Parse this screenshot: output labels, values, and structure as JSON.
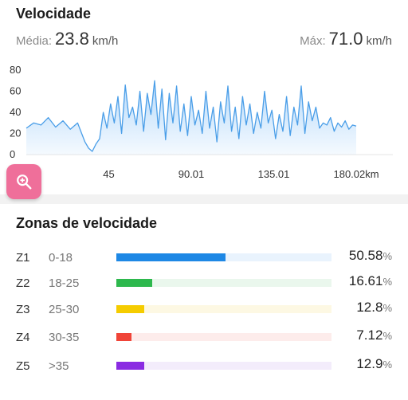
{
  "speed": {
    "title": "Velocidade",
    "avg_label": "Média:",
    "avg_value": "23.8",
    "avg_unit": "km/h",
    "max_label": "Máx:",
    "max_value": "71.0",
    "max_unit": "km/h"
  },
  "zones": {
    "title": "Zonas de velocidade",
    "items": [
      {
        "name": "Z1",
        "range": "0-18",
        "percent": "50.58",
        "fraction": 0.5058,
        "color": "#1e88e5",
        "track_color": "#e9f3fd"
      },
      {
        "name": "Z2",
        "range": "18-25",
        "percent": "16.61",
        "fraction": 0.1661,
        "color": "#2db84d",
        "track_color": "#eaf7ed"
      },
      {
        "name": "Z3",
        "range": "25-30",
        "percent": "12.8",
        "fraction": 0.128,
        "color": "#f5cc00",
        "track_color": "#fdf8e3"
      },
      {
        "name": "Z4",
        "range": "30-35",
        "percent": "7.12",
        "fraction": 0.0712,
        "color": "#f04438",
        "track_color": "#fdeceb"
      },
      {
        "name": "Z5",
        "range": ">35",
        "percent": "12.9",
        "fraction": 0.129,
        "color": "#8a2be2",
        "track_color": "#f3ecfb"
      }
    ],
    "percent_sign": "%"
  },
  "zoom_button": {
    "icon": "zoom-in-icon",
    "color": "#ef6f9a"
  },
  "chart_data": {
    "type": "area",
    "xlabel": "",
    "ylabel": "",
    "xlim": [
      0,
      200
    ],
    "ylim": [
      0,
      80
    ],
    "y_ticks": [
      "0",
      "20",
      "40",
      "60",
      "80"
    ],
    "x_ticks": [
      {
        "value": 0,
        "label": "0"
      },
      {
        "value": 45,
        "label": "45"
      },
      {
        "value": 90.01,
        "label": "90.01"
      },
      {
        "value": 135.01,
        "label": "135.01"
      },
      {
        "value": 180.02,
        "label": "180.02km"
      }
    ],
    "line_color": "#4a9ee8",
    "fill_color": "#a9d3fa",
    "series": [
      {
        "x": [
          0,
          4,
          8,
          12,
          16,
          20,
          24,
          28,
          32,
          34,
          36,
          38,
          40,
          42,
          44,
          46,
          48,
          50,
          52,
          54,
          56,
          58,
          60,
          62,
          64,
          66,
          68,
          70,
          72,
          74,
          76,
          78,
          80,
          82,
          84,
          86,
          88,
          90,
          92,
          94,
          96,
          98,
          100,
          102,
          104,
          106,
          108,
          110,
          112,
          114,
          116,
          118,
          120,
          122,
          124,
          126,
          128,
          130,
          132,
          134,
          136,
          138,
          140,
          142,
          144,
          146,
          148,
          150,
          152,
          154,
          156,
          158,
          160,
          162,
          164,
          166,
          168,
          170,
          172,
          174,
          176,
          178,
          180
        ],
        "y": [
          25,
          30,
          28,
          35,
          26,
          32,
          24,
          30,
          12,
          6,
          3,
          10,
          15,
          40,
          25,
          48,
          30,
          55,
          20,
          66,
          35,
          45,
          28,
          60,
          22,
          58,
          38,
          70,
          25,
          62,
          14,
          58,
          30,
          65,
          22,
          48,
          18,
          55,
          28,
          42,
          20,
          60,
          25,
          45,
          12,
          50,
          30,
          65,
          22,
          45,
          15,
          55,
          28,
          48,
          20,
          40,
          25,
          60,
          30,
          42,
          15,
          38,
          22,
          55,
          18,
          45,
          28,
          65,
          20,
          50,
          32,
          45,
          25,
          30,
          28,
          35,
          22,
          30,
          26,
          32,
          24,
          28,
          27
        ]
      }
    ]
  }
}
